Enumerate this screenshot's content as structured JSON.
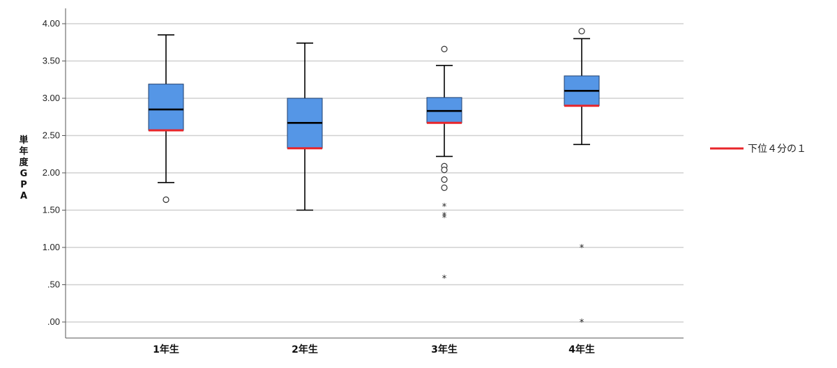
{
  "chart_data": {
    "type": "box",
    "ylabel": "単年度GPA",
    "ylim": [
      0,
      4
    ],
    "y_ticks": [
      {
        "value": 0,
        "label": ".00"
      },
      {
        "value": 0.5,
        "label": ".50"
      },
      {
        "value": 1.0,
        "label": "1.00"
      },
      {
        "value": 1.5,
        "label": "1.50"
      },
      {
        "value": 2.0,
        "label": "2.00"
      },
      {
        "value": 2.5,
        "label": "2.50"
      },
      {
        "value": 3.0,
        "label": "3.00"
      },
      {
        "value": 3.5,
        "label": "3.50"
      },
      {
        "value": 4.0,
        "label": "4.00"
      }
    ],
    "grid": true,
    "categories": [
      "1年生",
      "2年生",
      "3年生",
      "4年生"
    ],
    "boxes": [
      {
        "category": "1年生",
        "whisker_low": 1.87,
        "q1": 2.57,
        "median": 2.85,
        "q3": 3.19,
        "whisker_high": 3.85,
        "outliers": [
          1.64
        ],
        "extremes": []
      },
      {
        "category": "2年生",
        "whisker_low": 1.5,
        "q1": 2.33,
        "median": 2.67,
        "q3": 3.0,
        "whisker_high": 3.74,
        "outliers": [],
        "extremes": []
      },
      {
        "category": "3年生",
        "whisker_low": 2.22,
        "q1": 2.67,
        "median": 2.83,
        "q3": 3.01,
        "whisker_high": 3.44,
        "outliers": [
          3.66,
          2.09,
          2.04,
          1.91,
          1.8
        ],
        "extremes": [
          1.55,
          1.43,
          1.4,
          0.59
        ]
      },
      {
        "category": "4年生",
        "whisker_low": 2.38,
        "q1": 2.9,
        "median": 3.1,
        "q3": 3.3,
        "whisker_high": 3.8,
        "outliers": [
          3.9
        ],
        "extremes": [
          1.0,
          0.0
        ]
      }
    ],
    "legend": {
      "position": "right",
      "entries": [
        {
          "label": "下位４分の１",
          "color": "#e8252a"
        }
      ]
    },
    "colors": {
      "box_fill": "#5596e6",
      "box_stroke": "#1f3f6e",
      "median": "#000000",
      "lower_quartile": "#e8252a",
      "grid": "#d0d0d0"
    }
  }
}
